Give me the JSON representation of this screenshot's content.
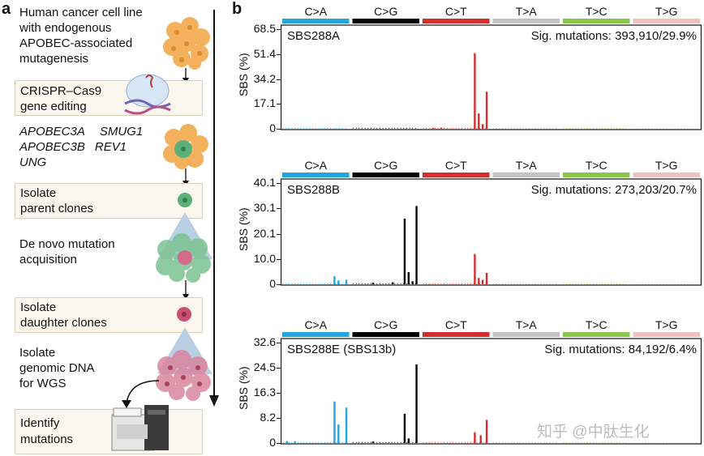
{
  "panel_a": {
    "letter": "a",
    "step1_lines": [
      "Human cancer cell line",
      "with endogenous",
      "APOBEC-associated",
      "mutagenesis"
    ],
    "crispr_lines": [
      "CRISPR–Cas9",
      "gene editing"
    ],
    "genes": [
      "APOBEC3A",
      "SMUG1",
      "APOBEC3B",
      "REV1",
      "UNG"
    ],
    "isolate_parent_lines": [
      "Isolate",
      "parent clones"
    ],
    "denovo_lines": [
      "De novo mutation",
      "acquisition"
    ],
    "isolate_daughter_lines": [
      "Isolate",
      "daughter clones"
    ],
    "genomic_lines": [
      "Isolate",
      "genomic DNA",
      "for WGS"
    ],
    "identify_lines": [
      "Identify",
      "mutations"
    ]
  },
  "panel_b": {
    "letter": "b",
    "ylabel": "SBS (%)",
    "categories": [
      "C>A",
      "C>G",
      "C>T",
      "T>A",
      "T>C",
      "T>G"
    ],
    "colors": {
      "C>A": "#22a7dc",
      "C>G": "#000000",
      "C>T": "#d62e2e",
      "T>A": "#c4c4c4",
      "T>C": "#8ac64a",
      "T>G": "#eec2c2"
    }
  },
  "watermark": "知乎 @中肽生化",
  "chart_data": [
    {
      "type": "bar",
      "title": "SBS288A",
      "annotation": "Sig. mutations: 393,910/29.9%",
      "ylabel": "SBS (%)",
      "ylim": [
        0,
        68.5
      ],
      "yticks": [
        "68.5",
        "51.4",
        "34.2",
        "17.1",
        "0"
      ],
      "categories": [
        "C>A",
        "C>G",
        "C>T",
        "T>A",
        "T>C",
        "T>G"
      ],
      "bars": [
        {
          "group": "C>T",
          "index": 10,
          "value": 0.6
        },
        {
          "group": "C>T",
          "index": 18,
          "value": 0.8
        },
        {
          "group": "C>T",
          "index": 52,
          "value": 52.0
        },
        {
          "group": "C>T",
          "index": 56,
          "value": 10.5
        },
        {
          "group": "C>T",
          "index": 60,
          "value": 3.2
        },
        {
          "group": "C>T",
          "index": 64,
          "value": 25.5
        }
      ]
    },
    {
      "type": "bar",
      "title": "SBS288B",
      "annotation": "Sig. mutations: 273,203/20.7%",
      "ylabel": "SBS (%)",
      "ylim": [
        0,
        40.1
      ],
      "yticks": [
        "40.1",
        "30.1",
        "20.1",
        "10.0",
        "0"
      ],
      "categories": [
        "C>A",
        "C>G",
        "C>T",
        "T>A",
        "T>C",
        "T>G"
      ],
      "bars": [
        {
          "group": "C>A",
          "index": 52,
          "value": 3.2
        },
        {
          "group": "C>A",
          "index": 56,
          "value": 1.5
        },
        {
          "group": "C>A",
          "index": 64,
          "value": 1.8
        },
        {
          "group": "C>G",
          "index": 20,
          "value": 0.6
        },
        {
          "group": "C>G",
          "index": 40,
          "value": 0.8
        },
        {
          "group": "C>G",
          "index": 52,
          "value": 26.0
        },
        {
          "group": "C>G",
          "index": 56,
          "value": 4.8
        },
        {
          "group": "C>G",
          "index": 60,
          "value": 1.2
        },
        {
          "group": "C>G",
          "index": 64,
          "value": 31.0
        },
        {
          "group": "C>T",
          "index": 52,
          "value": 12.0
        },
        {
          "group": "C>T",
          "index": 56,
          "value": 2.5
        },
        {
          "group": "C>T",
          "index": 60,
          "value": 1.8
        },
        {
          "group": "C>T",
          "index": 64,
          "value": 4.5
        }
      ]
    },
    {
      "type": "bar",
      "title": "SBS288E (SBS13b)",
      "annotation": "Sig. mutations: 84,192/6.4%",
      "ylabel": "SBS (%)",
      "ylim": [
        0,
        32.6
      ],
      "yticks": [
        "32.6",
        "24.5",
        "16.3",
        "8.2",
        "0"
      ],
      "categories": [
        "C>A",
        "C>G",
        "C>T",
        "T>A",
        "T>C",
        "T>G"
      ],
      "bars": [
        {
          "group": "C>A",
          "index": 4,
          "value": 0.6
        },
        {
          "group": "C>A",
          "index": 12,
          "value": 0.6
        },
        {
          "group": "C>A",
          "index": 52,
          "value": 13.5
        },
        {
          "group": "C>A",
          "index": 56,
          "value": 6.0
        },
        {
          "group": "C>A",
          "index": 64,
          "value": 11.5
        },
        {
          "group": "C>G",
          "index": 20,
          "value": 0.5
        },
        {
          "group": "C>G",
          "index": 52,
          "value": 9.5
        },
        {
          "group": "C>G",
          "index": 56,
          "value": 1.5
        },
        {
          "group": "C>G",
          "index": 64,
          "value": 25.5
        },
        {
          "group": "C>T",
          "index": 52,
          "value": 3.5
        },
        {
          "group": "C>T",
          "index": 58,
          "value": 2.5
        },
        {
          "group": "C>T",
          "index": 64,
          "value": 7.5
        }
      ]
    }
  ]
}
